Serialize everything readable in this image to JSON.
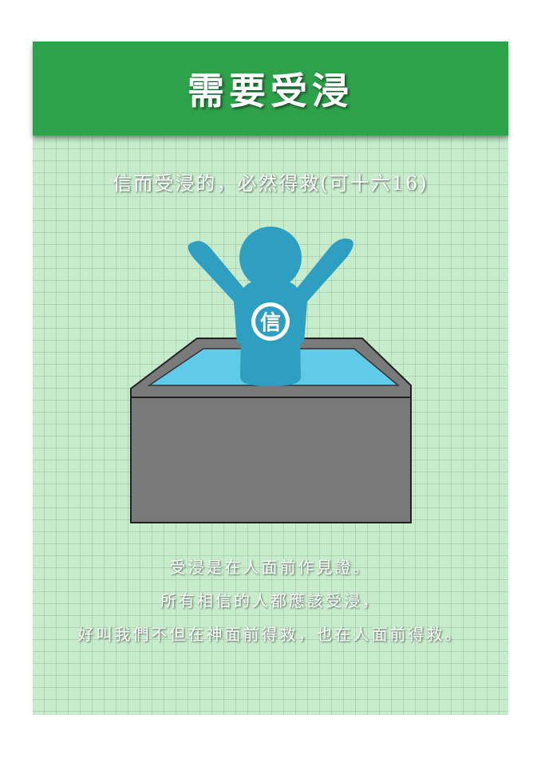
{
  "header": {
    "title": "需要受浸"
  },
  "verse": {
    "text": "信而受浸的，必然得救(可十六16)"
  },
  "figure": {
    "chest_label": "信"
  },
  "body": {
    "lines": [
      "受浸是在人面前作見證。",
      "所有相信的人都應該受浸，",
      "好叫我們不但在神面前得救，也在人面前得救。"
    ]
  },
  "colors": {
    "header_green": "#2ea24b",
    "background_green": "#c6eccb",
    "figure_blue": "#2e9fc1",
    "water_blue": "#5fcbe8",
    "tank_gray": "#7a7a7a"
  }
}
